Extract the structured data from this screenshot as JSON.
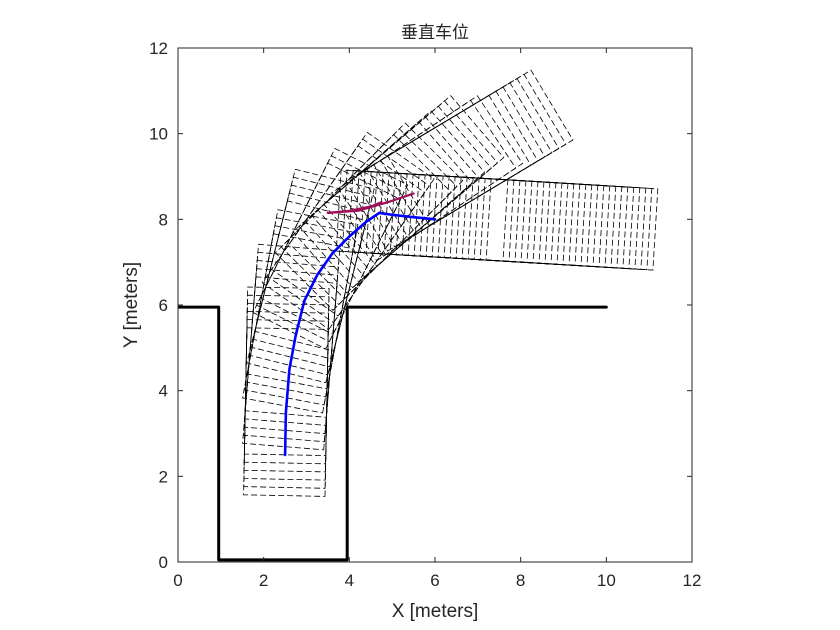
{
  "chart_data": {
    "type": "line",
    "title": "垂直车位",
    "xlabel": "X [meters]",
    "ylabel": "Y [meters]",
    "xlim": [
      0,
      12
    ],
    "ylim": [
      0,
      12
    ],
    "xticks": [
      0,
      2,
      4,
      6,
      8,
      10,
      12
    ],
    "yticks": [
      0,
      2,
      4,
      6,
      8,
      10,
      12
    ],
    "grid": false,
    "legend": "none",
    "colors": {
      "boundary": "#000000",
      "path": "#0000ff",
      "magenta_branch": "#a0105a",
      "footprints": "#000000"
    },
    "series": [
      {
        "kind": "boundary",
        "x": [
          0,
          0.95,
          0.95,
          3.95,
          3.95,
          10
        ],
        "y": [
          5.95,
          5.95,
          0.05,
          0.05,
          5.95,
          5.95
        ]
      },
      {
        "kind": "path",
        "x": [
          2.5,
          2.52,
          2.6,
          2.75,
          2.95,
          3.25,
          3.6,
          4.0,
          4.4,
          4.7
        ],
        "y": [
          2.5,
          3.5,
          4.5,
          5.3,
          6.1,
          6.7,
          7.2,
          7.6,
          7.95,
          8.15
        ]
      },
      {
        "kind": "path",
        "x": [
          4.7,
          5.05,
          5.5,
          6.0
        ],
        "y": [
          8.15,
          8.1,
          8.05,
          8.0
        ]
      },
      {
        "kind": "branch",
        "x": [
          3.5,
          4.0,
          4.5,
          4.75
        ],
        "y": [
          8.15,
          8.2,
          8.3,
          8.4
        ]
      },
      {
        "kind": "branch",
        "x": [
          3.5,
          4.2,
          4.9,
          5.5
        ],
        "y": [
          8.15,
          8.2,
          8.4,
          8.6
        ]
      }
    ],
    "footprint_sets": [
      {
        "note": "vehicle outline at each pose along the main path",
        "path": {
          "x": [
            2.5,
            2.52,
            2.6,
            2.75,
            2.95,
            3.25,
            3.6,
            4.0,
            4.4,
            4.75,
            5.2,
            5.7,
            6.2
          ],
          "y": [
            2.5,
            3.5,
            4.5,
            5.3,
            6.1,
            6.7,
            7.2,
            7.6,
            7.95,
            8.25,
            8.55,
            8.85,
            9.15
          ]
        }
      },
      {
        "note": "vehicle outline at each pose along the straight exit",
        "path": {
          "x": [
            4.7,
            5.2,
            5.7,
            6.2,
            6.7,
            7.2,
            7.7,
            8.2
          ],
          "y": [
            8.15,
            8.12,
            8.09,
            8.06,
            8.03,
            8.0,
            7.97,
            7.94
          ]
        }
      }
    ]
  }
}
